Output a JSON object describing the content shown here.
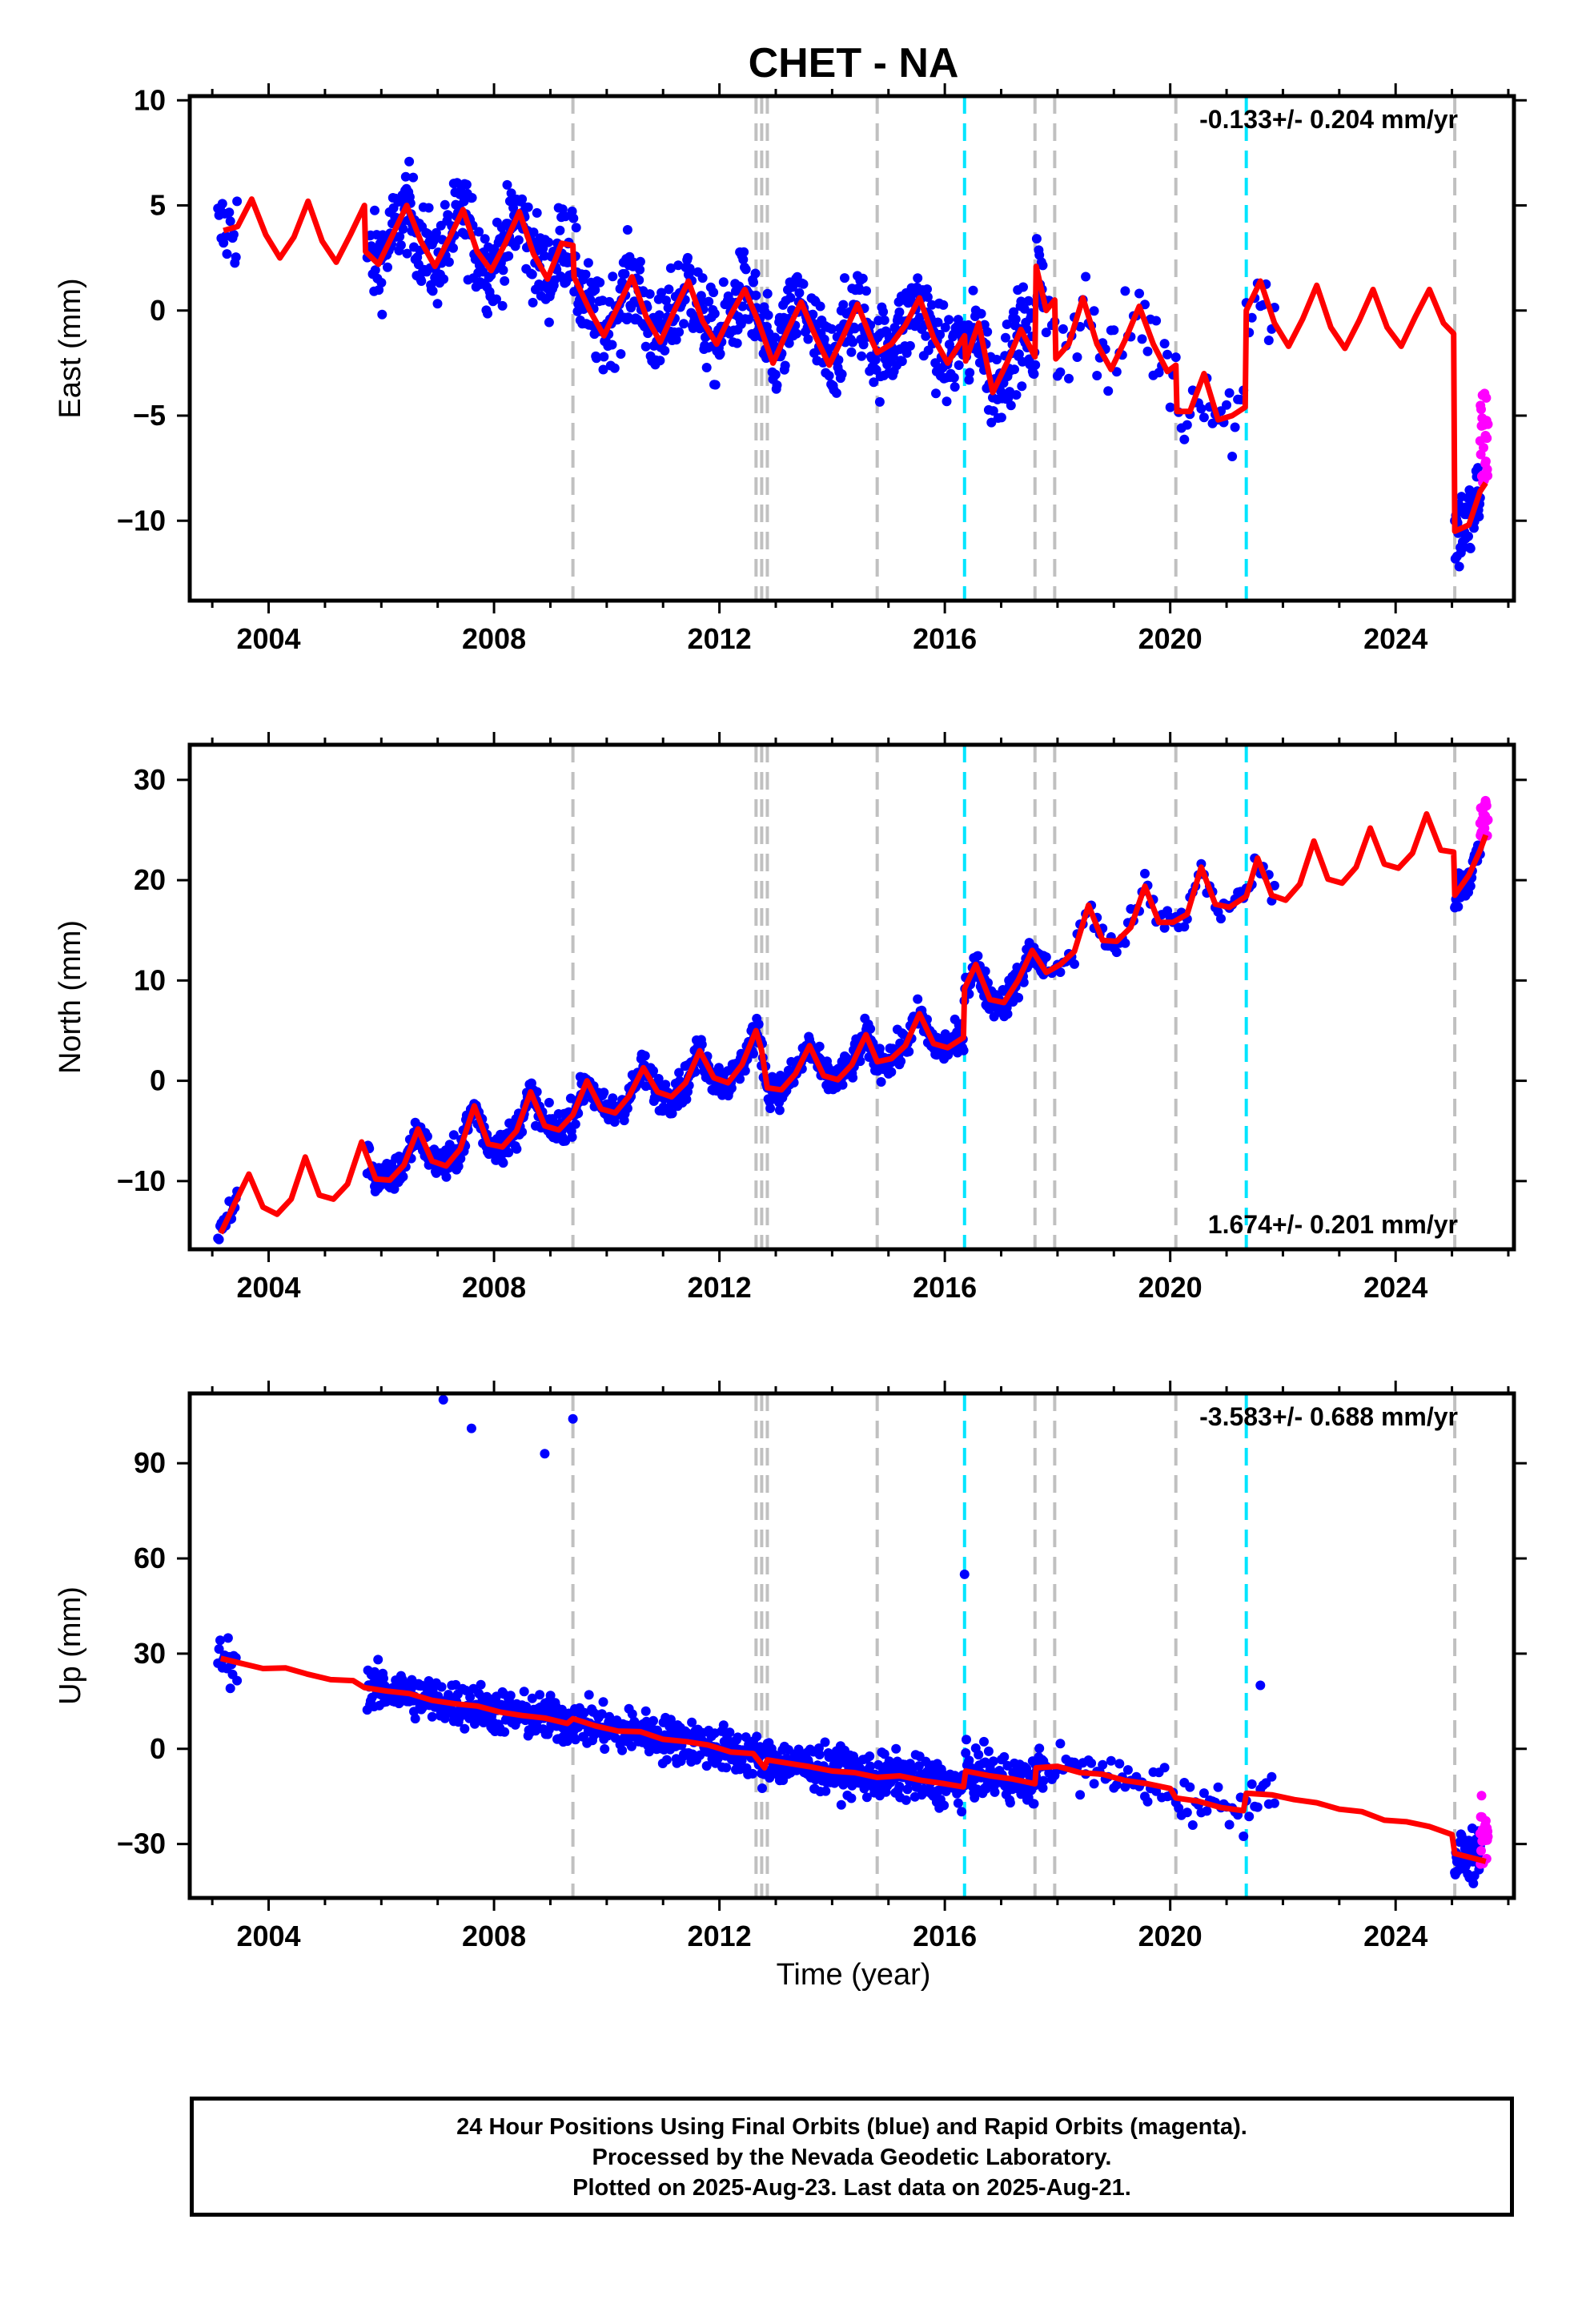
{
  "chart_data": {
    "type": "scatter",
    "title": "CHET - NA",
    "xlabel": "Time (year)",
    "xlim": [
      2002.6,
      2026.1
    ],
    "xticks": [
      "2004",
      "2008",
      "2012",
      "2016",
      "2020",
      "2024"
    ],
    "tick_values": [
      2004,
      2008,
      2012,
      2016,
      2020,
      2024
    ],
    "colors": {
      "final": "#0000ff",
      "rapid": "#ff00ff",
      "model": "#ff0000",
      "equipment_change": "#c0c0c0",
      "earthquake": "#00e5ff"
    },
    "equipment_change_lines": [
      2009.4,
      2012.65,
      2012.75,
      2012.85,
      2014.8,
      2017.6,
      2017.95,
      2020.1,
      2025.05
    ],
    "earthquake_lines": [
      2016.35,
      2021.35
    ],
    "panels": [
      {
        "name": "east",
        "ylabel": "East (mm)",
        "ylim": [
          -13.8,
          10.2
        ],
        "yticks": [
          "10",
          "5",
          "0",
          "−5",
          "−10"
        ],
        "ytick_values": [
          10,
          5,
          0,
          -5,
          -10
        ],
        "rate": "-0.133+/- 0.204 mm/yr",
        "rate_position": "top-right",
        "model_points": [
          [
            2003.2,
            3.8
          ],
          [
            2003.45,
            4.0
          ],
          [
            2003.7,
            5.3
          ],
          [
            2003.95,
            3.6
          ],
          [
            2004.2,
            2.5
          ],
          [
            2004.45,
            3.5
          ],
          [
            2004.7,
            5.2
          ],
          [
            2004.95,
            3.3
          ],
          [
            2005.2,
            2.3
          ],
          [
            2005.45,
            3.6
          ],
          [
            2005.7,
            5.0
          ],
          [
            2005.72,
            2.8
          ],
          [
            2005.95,
            2.2
          ],
          [
            2006.2,
            3.6
          ],
          [
            2006.45,
            5.0
          ],
          [
            2006.7,
            3.3
          ],
          [
            2006.95,
            2.1
          ],
          [
            2007.2,
            3.4
          ],
          [
            2007.45,
            4.8
          ],
          [
            2007.7,
            2.8
          ],
          [
            2007.95,
            1.9
          ],
          [
            2008.2,
            3.2
          ],
          [
            2008.45,
            4.7
          ],
          [
            2008.7,
            2.7
          ],
          [
            2008.95,
            1.5
          ],
          [
            2009.2,
            3.2
          ],
          [
            2009.4,
            3.1
          ],
          [
            2009.42,
            1.6
          ],
          [
            2009.7,
            0.0
          ],
          [
            2009.95,
            -1.2
          ],
          [
            2010.2,
            0.2
          ],
          [
            2010.45,
            1.6
          ],
          [
            2010.7,
            -0.3
          ],
          [
            2010.95,
            -1.5
          ],
          [
            2011.2,
            0.0
          ],
          [
            2011.45,
            1.4
          ],
          [
            2011.7,
            -0.5
          ],
          [
            2011.95,
            -1.6
          ],
          [
            2012.2,
            -0.2
          ],
          [
            2012.45,
            1.0
          ],
          [
            2012.7,
            -0.6
          ],
          [
            2012.95,
            -2.5
          ],
          [
            2013.2,
            -1.0
          ],
          [
            2013.45,
            0.4
          ],
          [
            2013.7,
            -1.2
          ],
          [
            2013.95,
            -2.6
          ],
          [
            2014.2,
            -1.2
          ],
          [
            2014.45,
            0.3
          ],
          [
            2014.7,
            -1.4
          ],
          [
            2014.8,
            -2.0
          ],
          [
            2015.05,
            -1.6
          ],
          [
            2015.3,
            -0.7
          ],
          [
            2015.55,
            0.6
          ],
          [
            2015.8,
            -1.3
          ],
          [
            2016.05,
            -2.5
          ],
          [
            2016.35,
            -1.2
          ],
          [
            2016.37,
            -2.4
          ],
          [
            2016.6,
            -0.6
          ],
          [
            2016.85,
            -3.9
          ],
          [
            2017.1,
            -2.5
          ],
          [
            2017.35,
            -0.9
          ],
          [
            2017.6,
            -2.2
          ],
          [
            2017.62,
            2.1
          ],
          [
            2017.8,
            0.0
          ],
          [
            2017.95,
            0.5
          ],
          [
            2017.97,
            -2.3
          ],
          [
            2018.2,
            -1.6
          ],
          [
            2018.45,
            0.6
          ],
          [
            2018.7,
            -1.6
          ],
          [
            2018.95,
            -2.8
          ],
          [
            2019.2,
            -1.4
          ],
          [
            2019.45,
            0.2
          ],
          [
            2019.7,
            -1.6
          ],
          [
            2019.95,
            -2.9
          ],
          [
            2020.1,
            -2.6
          ],
          [
            2020.12,
            -4.8
          ],
          [
            2020.35,
            -4.8
          ],
          [
            2020.6,
            -3.0
          ],
          [
            2020.85,
            -5.2
          ],
          [
            2021.1,
            -5.0
          ],
          [
            2021.33,
            -4.6
          ],
          [
            2021.35,
            0.0
          ],
          [
            2021.6,
            1.4
          ],
          [
            2021.85,
            -0.6
          ],
          [
            2022.1,
            -1.7
          ],
          [
            2022.35,
            -0.4
          ],
          [
            2022.6,
            1.2
          ],
          [
            2022.85,
            -0.8
          ],
          [
            2023.1,
            -1.8
          ],
          [
            2023.35,
            -0.5
          ],
          [
            2023.6,
            1.0
          ],
          [
            2023.85,
            -0.8
          ],
          [
            2024.1,
            -1.7
          ],
          [
            2024.35,
            -0.3
          ],
          [
            2024.6,
            1.0
          ],
          [
            2024.85,
            -0.6
          ],
          [
            2025.03,
            -1.1
          ],
          [
            2025.05,
            -10.5
          ],
          [
            2025.3,
            -10.2
          ],
          [
            2025.5,
            -8.6
          ],
          [
            2025.6,
            -8.2
          ]
        ]
      },
      {
        "name": "north",
        "ylabel": "North (mm)",
        "ylim": [
          -16.8,
          33.5
        ],
        "yticks": [
          "30",
          "20",
          "10",
          "0",
          "−10"
        ],
        "ytick_values": [
          30,
          20,
          10,
          0,
          -10
        ],
        "rate": "1.674+/- 0.201 mm/yr",
        "rate_position": "bottom-right",
        "model_points": [
          [
            2003.15,
            -15.2
          ],
          [
            2003.4,
            -12.2
          ],
          [
            2003.65,
            -9.3
          ],
          [
            2003.9,
            -12.6
          ],
          [
            2004.15,
            -13.3
          ],
          [
            2004.4,
            -11.8
          ],
          [
            2004.65,
            -7.6
          ],
          [
            2004.9,
            -11.4
          ],
          [
            2005.15,
            -11.8
          ],
          [
            2005.4,
            -10.3
          ],
          [
            2005.65,
            -6.1
          ],
          [
            2005.9,
            -9.8
          ],
          [
            2006.15,
            -9.9
          ],
          [
            2006.4,
            -8.4
          ],
          [
            2006.65,
            -4.8
          ],
          [
            2006.9,
            -8.0
          ],
          [
            2007.15,
            -8.5
          ],
          [
            2007.4,
            -6.8
          ],
          [
            2007.65,
            -2.5
          ],
          [
            2007.9,
            -6.3
          ],
          [
            2008.15,
            -6.6
          ],
          [
            2008.4,
            -5.0
          ],
          [
            2008.65,
            -1.1
          ],
          [
            2008.9,
            -4.5
          ],
          [
            2009.15,
            -4.9
          ],
          [
            2009.4,
            -3.4
          ],
          [
            2009.65,
            0.0
          ],
          [
            2009.9,
            -2.8
          ],
          [
            2010.15,
            -3.2
          ],
          [
            2010.4,
            -1.5
          ],
          [
            2010.65,
            1.3
          ],
          [
            2010.9,
            -1.1
          ],
          [
            2011.15,
            -1.6
          ],
          [
            2011.4,
            -0.2
          ],
          [
            2011.65,
            3.0
          ],
          [
            2011.9,
            0.3
          ],
          [
            2012.15,
            -0.2
          ],
          [
            2012.4,
            1.6
          ],
          [
            2012.65,
            5.0
          ],
          [
            2012.75,
            3.0
          ],
          [
            2012.85,
            -0.7
          ],
          [
            2013.1,
            -0.9
          ],
          [
            2013.35,
            0.7
          ],
          [
            2013.6,
            3.5
          ],
          [
            2013.85,
            0.5
          ],
          [
            2014.1,
            0.1
          ],
          [
            2014.35,
            1.6
          ],
          [
            2014.6,
            4.6
          ],
          [
            2014.8,
            1.9
          ],
          [
            2015.05,
            2.2
          ],
          [
            2015.3,
            3.5
          ],
          [
            2015.55,
            6.7
          ],
          [
            2015.8,
            3.7
          ],
          [
            2016.05,
            3.3
          ],
          [
            2016.33,
            4.3
          ],
          [
            2016.35,
            9.2
          ],
          [
            2016.55,
            11.6
          ],
          [
            2016.8,
            8.1
          ],
          [
            2017.05,
            7.8
          ],
          [
            2017.3,
            10.0
          ],
          [
            2017.55,
            13.0
          ],
          [
            2017.8,
            10.8
          ],
          [
            2018.05,
            11.6
          ],
          [
            2018.3,
            12.9
          ],
          [
            2018.55,
            17.5
          ],
          [
            2018.8,
            14.0
          ],
          [
            2019.05,
            13.9
          ],
          [
            2019.3,
            15.3
          ],
          [
            2019.55,
            19.4
          ],
          [
            2019.8,
            15.8
          ],
          [
            2020.05,
            15.8
          ],
          [
            2020.3,
            16.6
          ],
          [
            2020.55,
            21.3
          ],
          [
            2020.8,
            17.6
          ],
          [
            2021.05,
            17.3
          ],
          [
            2021.35,
            18.4
          ],
          [
            2021.55,
            22.2
          ],
          [
            2021.8,
            18.5
          ],
          [
            2022.05,
            18.0
          ],
          [
            2022.3,
            19.6
          ],
          [
            2022.55,
            23.9
          ],
          [
            2022.8,
            20.1
          ],
          [
            2023.05,
            19.7
          ],
          [
            2023.3,
            21.3
          ],
          [
            2023.55,
            25.2
          ],
          [
            2023.8,
            21.6
          ],
          [
            2024.05,
            21.2
          ],
          [
            2024.3,
            22.7
          ],
          [
            2024.55,
            26.6
          ],
          [
            2024.8,
            23.0
          ],
          [
            2025.03,
            22.8
          ],
          [
            2025.05,
            18.5
          ],
          [
            2025.3,
            20.5
          ],
          [
            2025.5,
            23.0
          ],
          [
            2025.6,
            24.5
          ]
        ]
      },
      {
        "name": "up",
        "ylabel": "Up (mm)",
        "ylim": [
          -47,
          112
        ],
        "yticks": [
          "90",
          "60",
          "30",
          "0",
          "−30"
        ],
        "ytick_values": [
          90,
          60,
          30,
          0,
          -30
        ],
        "rate": "-3.583+/- 0.688 mm/yr",
        "rate_position": "top-right",
        "outliers": [
          [
            2007.1,
            110
          ],
          [
            2007.6,
            101
          ],
          [
            2008.9,
            93
          ],
          [
            2009.4,
            104
          ],
          [
            2016.35,
            55
          ],
          [
            2021.6,
            20
          ]
        ],
        "model_points": [
          [
            2003.15,
            28.5
          ],
          [
            2003.5,
            27.0
          ],
          [
            2003.9,
            25.3
          ],
          [
            2004.3,
            25.5
          ],
          [
            2004.7,
            23.5
          ],
          [
            2005.1,
            21.8
          ],
          [
            2005.5,
            21.5
          ],
          [
            2005.7,
            19.3
          ],
          [
            2006.1,
            18.2
          ],
          [
            2006.5,
            17.4
          ],
          [
            2006.9,
            15.3
          ],
          [
            2007.3,
            14.2
          ],
          [
            2007.7,
            13.5
          ],
          [
            2008.1,
            11.6
          ],
          [
            2008.5,
            10.5
          ],
          [
            2008.9,
            9.7
          ],
          [
            2009.3,
            8.0
          ],
          [
            2009.4,
            9.5
          ],
          [
            2009.8,
            7.2
          ],
          [
            2010.2,
            5.6
          ],
          [
            2010.6,
            5.4
          ],
          [
            2011.0,
            3.0
          ],
          [
            2011.4,
            2.3
          ],
          [
            2011.8,
            1.2
          ],
          [
            2012.2,
            -1.0
          ],
          [
            2012.6,
            -1.5
          ],
          [
            2012.8,
            -6.0
          ],
          [
            2012.85,
            -3.5
          ],
          [
            2013.2,
            -4.5
          ],
          [
            2013.6,
            -5.6
          ],
          [
            2014.0,
            -7.0
          ],
          [
            2014.4,
            -7.5
          ],
          [
            2014.8,
            -9.0
          ],
          [
            2015.2,
            -8.5
          ],
          [
            2015.6,
            -10.0
          ],
          [
            2016.0,
            -11.0
          ],
          [
            2016.33,
            -12.0
          ],
          [
            2016.37,
            -7.0
          ],
          [
            2016.8,
            -8.5
          ],
          [
            2017.2,
            -9.5
          ],
          [
            2017.6,
            -11.0
          ],
          [
            2017.62,
            -6.0
          ],
          [
            2018.0,
            -5.5
          ],
          [
            2018.4,
            -7.5
          ],
          [
            2018.8,
            -8.0
          ],
          [
            2019.2,
            -10.0
          ],
          [
            2019.6,
            -11.0
          ],
          [
            2020.0,
            -12.5
          ],
          [
            2020.1,
            -15.5
          ],
          [
            2020.5,
            -16.5
          ],
          [
            2020.9,
            -18.5
          ],
          [
            2021.3,
            -19.5
          ],
          [
            2021.35,
            -14.0
          ],
          [
            2021.8,
            -14.5
          ],
          [
            2022.2,
            -16.0
          ],
          [
            2022.6,
            -17.0
          ],
          [
            2023.0,
            -19.0
          ],
          [
            2023.4,
            -19.8
          ],
          [
            2023.8,
            -22.5
          ],
          [
            2024.2,
            -23.0
          ],
          [
            2024.6,
            -24.5
          ],
          [
            2025.0,
            -27.0
          ],
          [
            2025.05,
            -33.0
          ],
          [
            2025.6,
            -35.5
          ]
        ]
      }
    ]
  },
  "caption": {
    "line1": "24 Hour Positions Using Final Orbits (blue) and Rapid Orbits (magenta).",
    "line2": "Processed by the Nevada Geodetic Laboratory.",
    "line3": "Plotted on 2025-Aug-23. Last data on 2025-Aug-21."
  }
}
